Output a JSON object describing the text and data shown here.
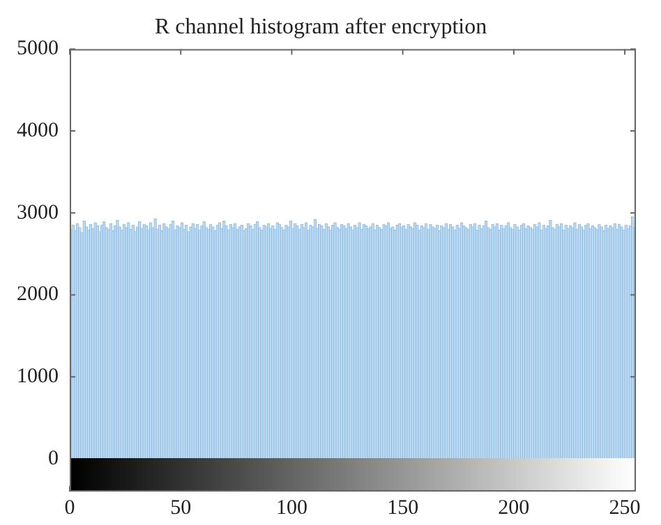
{
  "chart_data": {
    "type": "histogram",
    "title": "R channel histogram after encryption",
    "bins": [
      0,
      1,
      2,
      3,
      4,
      5,
      6,
      7,
      8,
      9,
      10,
      11,
      12,
      13,
      14,
      15,
      16,
      17,
      18,
      19,
      20,
      21,
      22,
      23,
      24,
      25,
      26,
      27,
      28,
      29,
      30,
      31,
      32,
      33,
      34,
      35,
      36,
      37,
      38,
      39,
      40,
      41,
      42,
      43,
      44,
      45,
      46,
      47,
      48,
      49,
      50,
      51,
      52,
      53,
      54,
      55,
      56,
      57,
      58,
      59,
      60,
      61,
      62,
      63,
      64,
      65,
      66,
      67,
      68,
      69,
      70,
      71,
      72,
      73,
      74,
      75,
      76,
      77,
      78,
      79,
      80,
      81,
      82,
      83,
      84,
      85,
      86,
      87,
      88,
      89,
      90,
      91,
      92,
      93,
      94,
      95,
      96,
      97,
      98,
      99,
      100,
      101,
      102,
      103,
      104,
      105,
      106,
      107,
      108,
      109,
      110,
      111,
      112,
      113,
      114,
      115,
      116,
      117,
      118,
      119,
      120,
      121,
      122,
      123,
      124,
      125,
      126,
      127,
      128,
      129,
      130,
      131,
      132,
      133,
      134,
      135,
      136,
      137,
      138,
      139,
      140,
      141,
      142,
      143,
      144,
      145,
      146,
      147,
      148,
      149,
      150,
      151,
      152,
      153,
      154,
      155,
      156,
      157,
      158,
      159,
      160,
      161,
      162,
      163,
      164,
      165,
      166,
      167,
      168,
      169,
      170,
      171,
      172,
      173,
      174,
      175,
      176,
      177,
      178,
      179,
      180,
      181,
      182,
      183,
      184,
      185,
      186,
      187,
      188,
      189,
      190,
      191,
      192,
      193,
      194,
      195,
      196,
      197,
      198,
      199,
      200,
      201,
      202,
      203,
      204,
      205,
      206,
      207,
      208,
      209,
      210,
      211,
      212,
      213,
      214,
      215,
      216,
      217,
      218,
      219,
      220,
      221,
      222,
      223,
      224,
      225,
      226,
      227,
      228,
      229,
      230,
      231,
      232,
      233,
      234,
      235,
      236,
      237,
      238,
      239,
      240,
      241,
      242,
      243,
      244,
      245,
      246,
      247,
      248,
      249,
      250,
      251,
      252,
      253,
      254,
      255
    ],
    "values": [
      2800,
      2850,
      2780,
      2870,
      2820,
      2760,
      2900,
      2830,
      2790,
      2860,
      2810,
      2880,
      2840,
      2770,
      2850,
      2890,
      2820,
      2800,
      2870,
      2780,
      2840,
      2910,
      2830,
      2790,
      2860,
      2820,
      2880,
      2800,
      2850,
      2770,
      2830,
      2890,
      2810,
      2860,
      2840,
      2790,
      2880,
      2820,
      2930,
      2800,
      2850,
      2780,
      2870,
      2830,
      2810,
      2860,
      2900,
      2790,
      2840,
      2820,
      2880,
      2800,
      2850,
      2770,
      2830,
      2870,
      2810,
      2860,
      2790,
      2840,
      2890,
      2820,
      2800,
      2860,
      2830,
      2780,
      2850,
      2880,
      2810,
      2900,
      2840,
      2790,
      2860,
      2820,
      2870,
      2800,
      2830,
      2850,
      2780,
      2810,
      2870,
      2840,
      2800,
      2860,
      2890,
      2820,
      2790,
      2850,
      2830,
      2870,
      2810,
      2840,
      2800,
      2880,
      2860,
      2820,
      2790,
      2850,
      2830,
      2900,
      2810,
      2870,
      2840,
      2800,
      2860,
      2820,
      2880,
      2790,
      2850,
      2830,
      2920,
      2810,
      2860,
      2840,
      2800,
      2870,
      2830,
      2790,
      2850,
      2880,
      2820,
      2800,
      2860,
      2840,
      2810,
      2870,
      2830,
      2790,
      2850,
      2820,
      2880,
      2800,
      2860,
      2840,
      2810,
      2830,
      2870,
      2790,
      2850,
      2820,
      2800,
      2860,
      2840,
      2880,
      2810,
      2830,
      2790,
      2850,
      2870,
      2820,
      2840,
      2800,
      2860,
      2830,
      2810,
      2880,
      2850,
      2790,
      2840,
      2820,
      2870,
      2800,
      2860,
      2830,
      2810,
      2850,
      2780,
      2840,
      2820,
      2870,
      2800,
      2860,
      2830,
      2790,
      2850,
      2810,
      2880,
      2840,
      2820,
      2800,
      2860,
      2830,
      2870,
      2790,
      2850,
      2810,
      2840,
      2900,
      2820,
      2800,
      2860,
      2830,
      2870,
      2790,
      2850,
      2810,
      2840,
      2880,
      2820,
      2800,
      2860,
      2830,
      2790,
      2850,
      2870,
      2810,
      2840,
      2820,
      2800,
      2860,
      2830,
      2880,
      2790,
      2850,
      2810,
      2840,
      2910,
      2820,
      2800,
      2860,
      2830,
      2870,
      2790,
      2850,
      2810,
      2840,
      2820,
      2880,
      2800,
      2860,
      2830,
      2790,
      2850,
      2870,
      2810,
      2840,
      2820,
      2800,
      2860,
      2830,
      2780,
      2850,
      2810,
      2840,
      2820,
      2870,
      2800,
      2860,
      2830,
      2790,
      2850,
      2810,
      2840,
      2950,
      2820
    ],
    "color": "#bcdaf2",
    "xlim": [
      0,
      255
    ],
    "xticks": [
      0,
      50,
      100,
      150,
      200,
      250
    ],
    "ylim": [
      -400,
      5000
    ],
    "yticks": [
      0,
      1000,
      2000,
      3000,
      4000,
      5000
    ],
    "grid": false,
    "legend": false
  }
}
